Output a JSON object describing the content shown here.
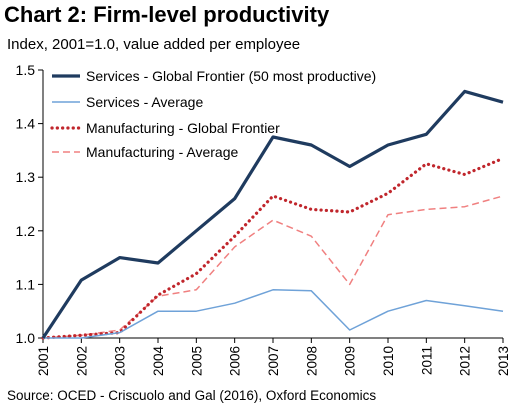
{
  "title": "Chart 2: Firm-level productivity",
  "subtitle": "Index, 2001=1.0, value added per employee",
  "source": "Source: OCED - Criscuolo and Gal (2016), Oxford Economics",
  "chart_data": {
    "type": "line",
    "x": [
      "2001",
      "2002",
      "2003",
      "2004",
      "2005",
      "2006",
      "2007",
      "2008",
      "2009",
      "2010",
      "2011",
      "2012",
      "2013"
    ],
    "ylim": [
      1.0,
      1.5
    ],
    "yticks": [
      "1.0",
      "1.1",
      "1.2",
      "1.3",
      "1.4",
      "1.5"
    ],
    "grid": false,
    "legend_position": "top-left",
    "series": [
      {
        "name": "Services - Global Frontier (50 most productive)",
        "color": "#1f3b5f",
        "style": "solid-thick",
        "values": [
          1.0,
          1.108,
          1.15,
          1.14,
          1.2,
          1.26,
          1.375,
          1.36,
          1.32,
          1.36,
          1.38,
          1.46,
          1.44
        ]
      },
      {
        "name": "Services - Average",
        "color": "#6fa2d8",
        "style": "solid-thin",
        "values": [
          1.0,
          1.0,
          1.01,
          1.05,
          1.05,
          1.065,
          1.09,
          1.088,
          1.015,
          1.05,
          1.07,
          1.06,
          1.05
        ]
      },
      {
        "name": "Manufacturing - Global Frontier",
        "color": "#c0262c",
        "style": "dotted-thick",
        "values": [
          1.0,
          1.005,
          1.01,
          1.08,
          1.12,
          1.19,
          1.265,
          1.24,
          1.235,
          1.27,
          1.325,
          1.305,
          1.335
        ]
      },
      {
        "name": "Manufacturing - Average",
        "color": "#f08080",
        "style": "dashed-thin",
        "values": [
          1.0,
          1.005,
          1.015,
          1.078,
          1.09,
          1.17,
          1.22,
          1.19,
          1.1,
          1.23,
          1.24,
          1.245,
          1.265
        ]
      }
    ]
  }
}
